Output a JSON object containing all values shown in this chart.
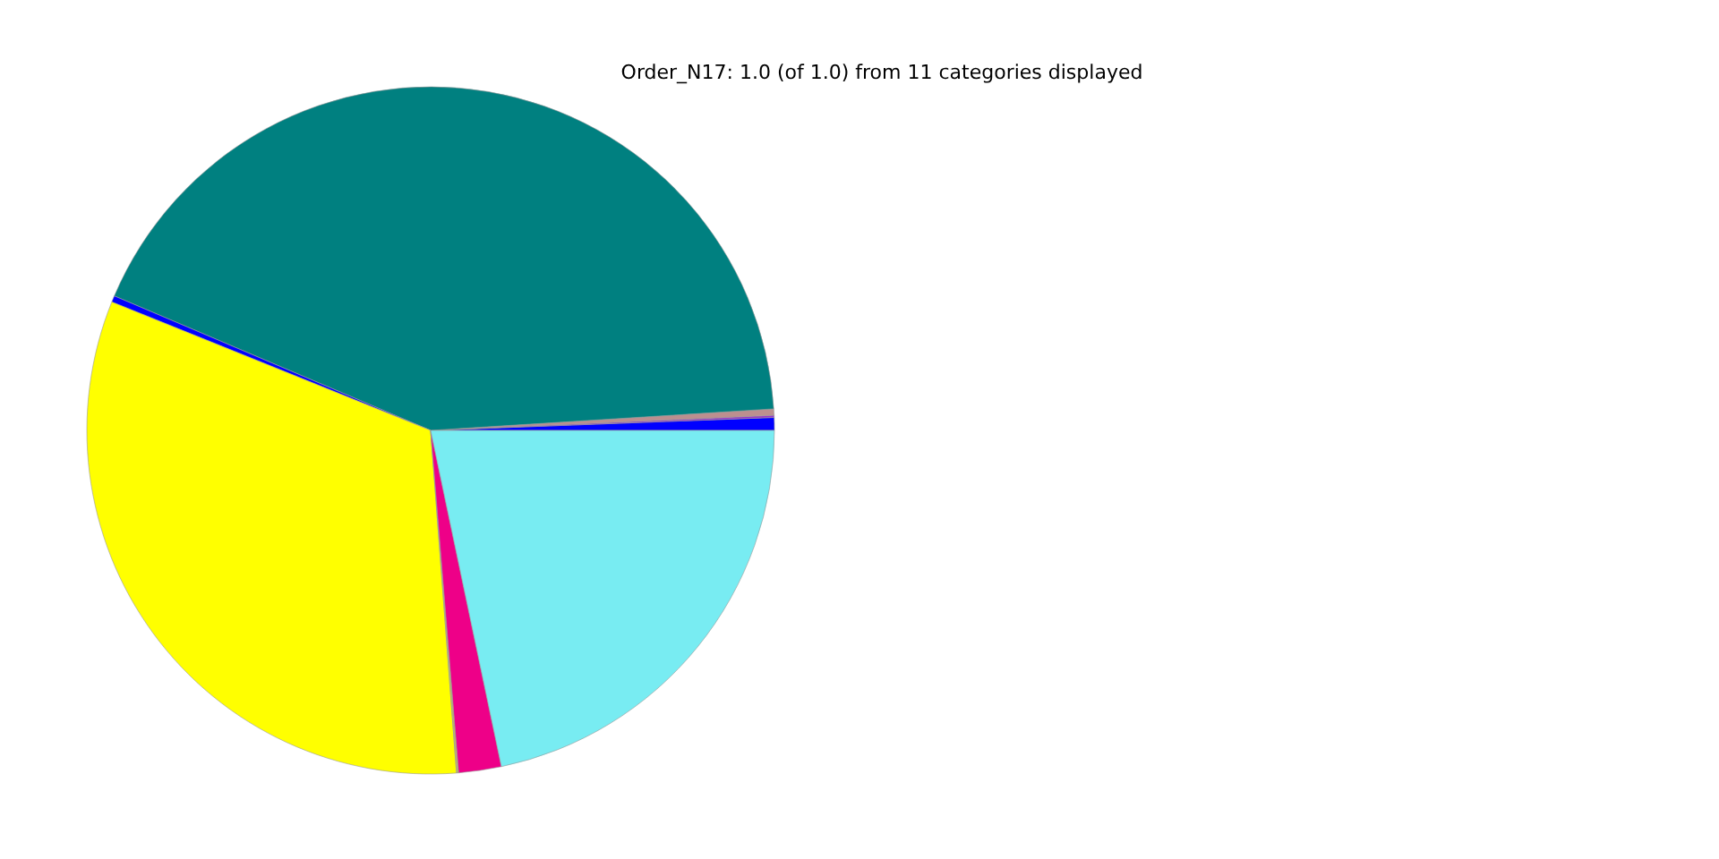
{
  "chart_data": {
    "type": "pie",
    "title": "Order_N17: 1.0 (of 1.0) from 11 categories displayed",
    "categories": [
      null,
      null,
      null,
      null,
      null,
      null,
      null,
      null,
      null
    ],
    "values": [
      0.6,
      0.1,
      0.3,
      42.6,
      0.3,
      32.3,
      0.1,
      2.0,
      21.7
    ],
    "colors": [
      "#0000ff",
      "#9932cc",
      "#bc8f8f",
      "#008080",
      "#0000ff",
      "#ffff00",
      "#bdb76b",
      "#ee0088",
      "#78ecf2"
    ]
  }
}
